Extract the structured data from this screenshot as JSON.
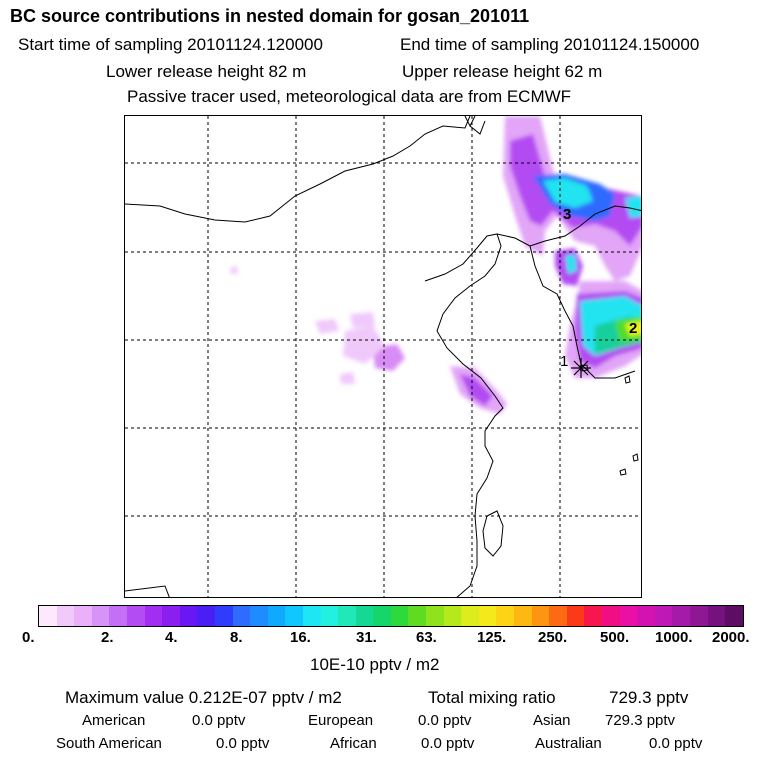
{
  "header": {
    "title": "BC  source contributions in nested domain for gosan_201011",
    "start_label": "Start time of sampling 20101124.120000",
    "end_label": "End time of sampling 20101124.150000",
    "lower_label": "Lower release height   82 m",
    "upper_label": "Upper release height   62 m",
    "note": "Passive tracer used, meteorological data are from ECMWF"
  },
  "map": {
    "markers": [
      "1",
      "2",
      "3"
    ],
    "colors": {
      "light": "#e7b8f5",
      "mid": "#b34cf2",
      "purple": "#8a1ff0",
      "blue": "#2f6bff",
      "cyan": "#22e3f0",
      "teal": "#12cf9a",
      "green": "#4fdd2a",
      "yellow": "#e7f01e",
      "site": "#000000"
    }
  },
  "colorscale": {
    "ticks": [
      "0.",
      "2.",
      "4.",
      "8.",
      "16.",
      "31.",
      "63.",
      "125.",
      "250.",
      "500.",
      "1000.",
      "2000."
    ],
    "colors": [
      "#fce9fd",
      "#f3c8fb",
      "#eab0f9",
      "#d794f7",
      "#c470f6",
      "#b34cf2",
      "#a12ef0",
      "#8a1ff0",
      "#6a18f3",
      "#4a1ff6",
      "#2f3cfb",
      "#2f6bff",
      "#1e8cff",
      "#11a9ff",
      "#10c8ff",
      "#1ee6f5",
      "#22f0e0",
      "#20e8b8",
      "#15d894",
      "#16d56a",
      "#2dd93d",
      "#5fdc22",
      "#8fe31d",
      "#b5e91c",
      "#dcec1c",
      "#f4e91a",
      "#fdd316",
      "#fdb812",
      "#fd9412",
      "#fc6a14",
      "#fb3a18",
      "#f7164e",
      "#f10e84",
      "#ea10a4",
      "#d312b1",
      "#be18b7",
      "#a61aa8",
      "#8e1794",
      "#76127d",
      "#5c0e63"
    ],
    "unit": "10E-10 pptv / m2"
  },
  "summary": {
    "max_label": "Maximum value  0.212E-07 pptv / m2",
    "total_label": "Total mixing ratio",
    "total_value": "729.3 pptv",
    "regions": [
      {
        "name": "American",
        "value": "0.0 pptv"
      },
      {
        "name": "European",
        "value": "0.0 pptv"
      },
      {
        "name": "Asian",
        "value": "729.3 pptv"
      },
      {
        "name": "South American",
        "value": "0.0 pptv"
      },
      {
        "name": "African",
        "value": "0.0 pptv"
      },
      {
        "name": "Australian",
        "value": "0.0 pptv"
      }
    ]
  }
}
